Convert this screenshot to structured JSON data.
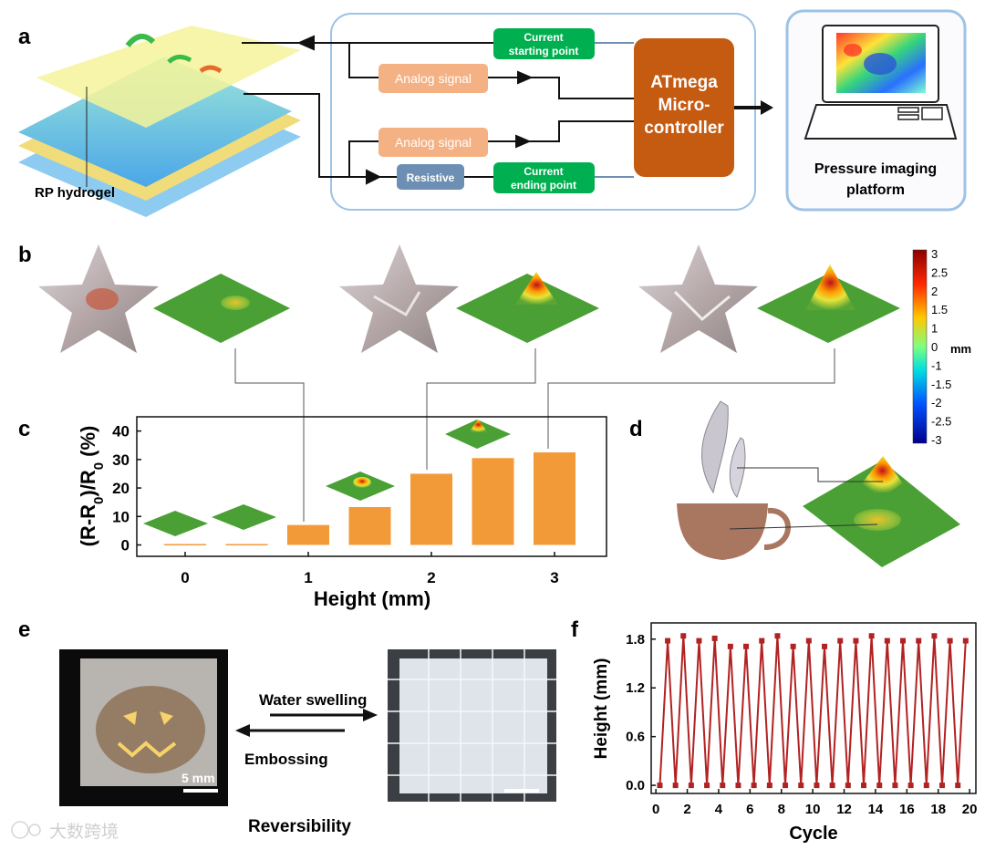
{
  "panel_labels": {
    "a": "a",
    "b": "b",
    "c": "c",
    "d": "d",
    "e": "e",
    "f": "f"
  },
  "panel_a": {
    "hydrogel_label": "RP hydrogel",
    "current_start": [
      "Current",
      "starting point"
    ],
    "current_end": [
      "Current",
      "ending point"
    ],
    "analog_signal_1": "Analog signal",
    "analog_signal_2": "Analog signal",
    "resistive": "Resistive",
    "mcu": [
      "ATmega",
      "Micro-",
      "controller"
    ],
    "platform": [
      "Pressure imaging",
      "platform"
    ],
    "colors": {
      "orange_box": "#f4b183",
      "green_box": "#00b050",
      "blue_box": "#6d8fb3",
      "mcu": "#c55a11",
      "panel_border": "#9dc3e6"
    }
  },
  "panel_b": {
    "colorbar_ticks": [
      "3",
      "2.5",
      "2",
      "1.5",
      "1",
      "0",
      "-1",
      "-1.5",
      "-2",
      "-2.5",
      "-3"
    ],
    "colorbar_unit": "mm"
  },
  "chart_data": [
    {
      "type": "bar",
      "panel": "c",
      "categories": [
        "0",
        "0.5",
        "1",
        "1.5",
        "2",
        "2.5",
        "3"
      ],
      "values": [
        0,
        0,
        7,
        13.3,
        25,
        30.5,
        32.5
      ],
      "x_tick_labels": [
        "0",
        "1",
        "2",
        "3"
      ],
      "x_tick_values": [
        0,
        1,
        2,
        3
      ],
      "xlabel": "Height (mm)",
      "ylabel": "(R-R₀)/R₀ (%)",
      "ylabel_parts": {
        "a": "(R-R",
        "sub1": "0",
        "b": ")/R",
        "sub2": "0",
        "c": " (%)"
      },
      "yticks": [
        "0",
        "10",
        "20",
        "30",
        "40"
      ],
      "ylim": [
        -4,
        45
      ],
      "bar_color": "#f39a38"
    },
    {
      "type": "line",
      "panel": "f",
      "x": [
        0.25,
        0.75,
        1.25,
        1.75,
        2.25,
        2.75,
        3.25,
        3.75,
        4.25,
        4.75,
        5.25,
        5.75,
        6.25,
        6.75,
        7.25,
        7.75,
        8.25,
        8.75,
        9.25,
        9.75,
        10.25,
        10.75,
        11.25,
        11.75,
        12.25,
        12.75,
        13.25,
        13.75,
        14.25,
        14.75,
        15.25,
        15.75,
        16.25,
        16.75,
        17.25,
        17.75,
        18.25,
        18.75,
        19.25,
        19.75
      ],
      "y": [
        0,
        1.78,
        0,
        1.84,
        0,
        1.78,
        0,
        1.81,
        0,
        1.71,
        0,
        1.71,
        0,
        1.78,
        0,
        1.84,
        0,
        1.71,
        0,
        1.78,
        0,
        1.71,
        0,
        1.78,
        0,
        1.78,
        0,
        1.84,
        0,
        1.78,
        0,
        1.78,
        0,
        1.78,
        0,
        1.84,
        0,
        1.78,
        0,
        1.78
      ],
      "xlabel": "Cycle",
      "ylabel": "Height (mm)",
      "xticks": [
        "0",
        "2",
        "4",
        "6",
        "8",
        "10",
        "12",
        "14",
        "16",
        "18",
        "20"
      ],
      "yticks": [
        "0.0",
        "0.6",
        "1.2",
        "1.8"
      ],
      "xlim": [
        -0.3,
        20.4
      ],
      "ylim": [
        -0.1,
        2.0
      ],
      "line_color": "#b22222"
    }
  ],
  "panel_e": {
    "water_swelling": "Water swelling",
    "embossing": "Embossing",
    "scale": "5 mm",
    "reversibility": "Reversibility"
  },
  "watermark": "大数跨境"
}
